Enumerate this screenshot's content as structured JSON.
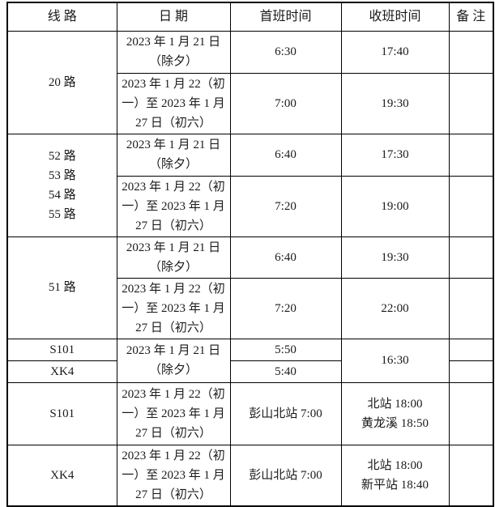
{
  "colors": {
    "text": "#1a1a1a",
    "border": "#000000",
    "table_background": "#ffffff"
  },
  "table": {
    "headers": {
      "route": "线 路",
      "date": "日 期",
      "first_bus": "首班时间",
      "last_bus": "收班时间",
      "remark": "备 注"
    },
    "rows": [
      {
        "route": "20 路",
        "date": "2023 年 1 月 21 日\n（除夕）",
        "first": "6:30",
        "last": "17:40",
        "remark": ""
      },
      {
        "date": "2023 年 1 月 22（初\n一）至 2023 年 1 月\n27 日（初六）",
        "first": "7:00",
        "last": "19:30",
        "remark": ""
      },
      {
        "route": "52 路\n53 路\n54 路\n55 路",
        "date": "2023 年 1 月 21 日\n（除夕）",
        "first": "6:40",
        "last": "17:30",
        "remark": ""
      },
      {
        "date": "2023 年 1 月 22（初\n一）至 2023 年 1 月\n27 日（初六）",
        "first": "7:20",
        "last": "19:00",
        "remark": ""
      },
      {
        "route": "51 路",
        "date": "2023 年 1 月 21 日\n（除夕）",
        "first": "6:40",
        "last": "19:30",
        "remark": ""
      },
      {
        "date": "2023 年 1 月 22（初\n一）至 2023 年 1 月\n27 日（初六）",
        "first": "7:20",
        "last": "22:00",
        "remark": ""
      },
      {
        "route": "S101",
        "date": "2023 年 1 月 21 日\n（除夕）",
        "first": "5:50",
        "last": "16:30",
        "remark": ""
      },
      {
        "route": "XK4",
        "first": "5:40",
        "remark": ""
      },
      {
        "route": "S101",
        "date": "2023 年 1 月 22（初\n一）至 2023 年 1 月\n27 日（初六）",
        "first": "彭山北站 7:00",
        "last": "北站 18:00\n黄龙溪 18:50",
        "remark": ""
      },
      {
        "route": "XK4",
        "date": "2023 年 1 月 22（初\n一）至 2023 年 1 月\n27 日（初六）",
        "first": "彭山北站 7:00",
        "last": "北站 18:00\n新平站 18:40",
        "remark": ""
      }
    ]
  }
}
